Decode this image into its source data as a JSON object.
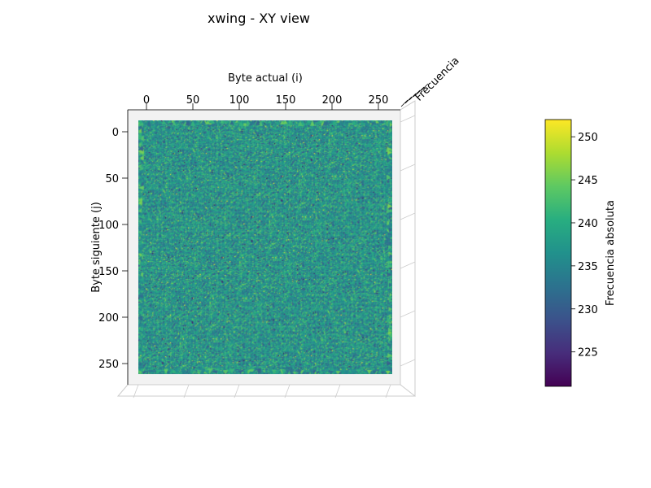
{
  "chart_data": {
    "type": "heatmap",
    "title": "xwing - XY view",
    "xlabel": "Byte actual (i)",
    "ylabel": "Byte siguiente (j)",
    "zlabel": "Frecuencia",
    "x_ticks": [
      0,
      50,
      100,
      150,
      200,
      250
    ],
    "y_ticks": [
      0,
      50,
      100,
      150,
      200,
      250
    ],
    "xlim": [
      -10,
      265
    ],
    "ylim": [
      -10,
      270
    ],
    "grid_size": 256,
    "colormap": "viridis",
    "colorbar": {
      "label": "Frecuencia absoluta",
      "ticks": [
        225,
        230,
        235,
        240,
        245,
        250
      ],
      "range": [
        221,
        252
      ]
    },
    "value_summary": {
      "min": 221,
      "max": 252,
      "typical": 237
    },
    "colors": {
      "pane": "#f2f2f2",
      "pane_edge": "#cccccc"
    }
  }
}
